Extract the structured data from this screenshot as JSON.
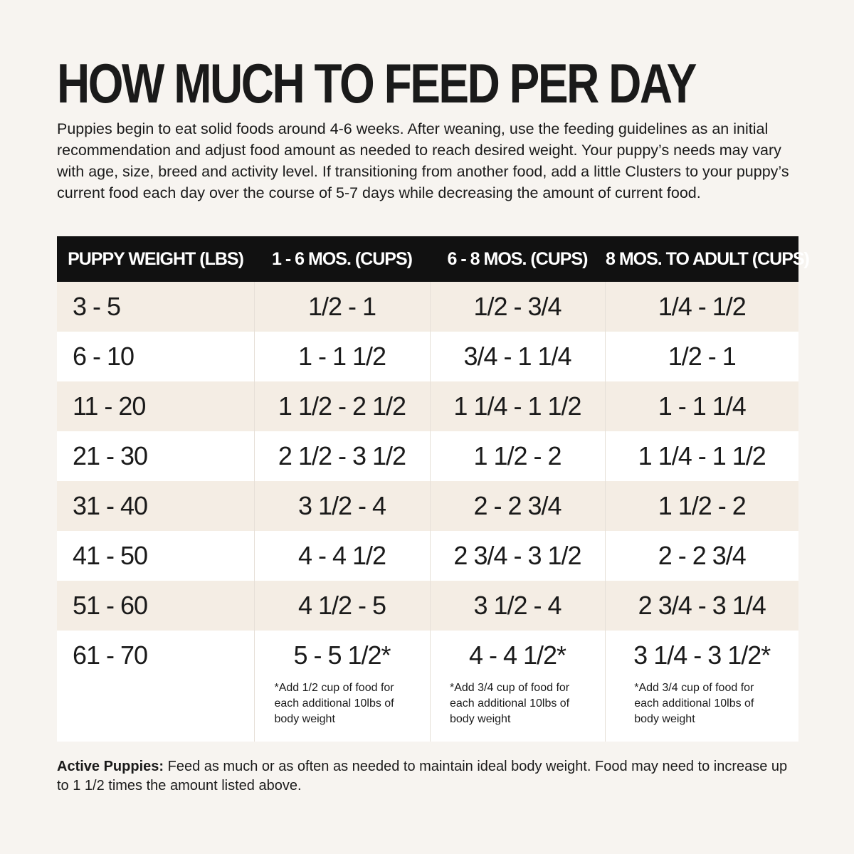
{
  "header": {
    "title": "HOW MUCH TO FEED PER DAY",
    "intro": "Puppies begin to eat solid foods around 4-6 weeks. After weaning, use the feeding guidelines as an initial recommendation and adjust food amount as needed to reach desired weight. Your puppy’s needs may vary with age, size, breed and activity level. If transitioning from another food, add a little Clusters to your puppy’s current food each day over the course of 5-7 days while decreasing the amount of current food."
  },
  "table": {
    "columns": [
      "PUPPY WEIGHT (LBS)",
      "1 - 6 MOS. (CUPS)",
      "6 - 8 MOS. (CUPS)",
      "8 MOS. TO ADULT (CUPS)"
    ],
    "rows": [
      [
        "3 - 5",
        "1/2 - 1",
        "1/2 - 3/4",
        "1/4 - 1/2"
      ],
      [
        "6 - 10",
        "1 - 1 1/2",
        "3/4 - 1 1/4",
        "1/2 - 1"
      ],
      [
        "11 - 20",
        "1 1/2 - 2 1/2",
        "1 1/4 - 1 1/2",
        "1 - 1 1/4"
      ],
      [
        "21 - 30",
        "2 1/2 - 3 1/2",
        "1 1/2 - 2",
        "1 1/4 - 1 1/2"
      ],
      [
        "31 - 40",
        "3 1/2 - 4",
        "2 - 2 3/4",
        "1 1/2 - 2"
      ],
      [
        "41 - 50",
        "4 - 4 1/2",
        "2 3/4 - 3 1/2",
        "2 - 2 3/4"
      ],
      [
        "51 - 60",
        "4 1/2 - 5",
        "3 1/2 - 4",
        "2 3/4 - 3 1/4"
      ],
      [
        "61 - 70",
        "5 - 5 1/2*",
        "4 - 4 1/2*",
        "3 1/4 - 3 1/2*"
      ]
    ],
    "footnotes": [
      "*Add 1/2 cup of food for each additional 10lbs of body weight",
      "*Add 3/4 cup of food for each additional 10lbs of body weight",
      "*Add 3/4 cup of food for each additional 10lbs of body weight"
    ]
  },
  "footer": {
    "label": "Active Puppies:",
    "text": "Feed as much or as often as needed to maintain ideal body weight. Food may need to increase up to 1 1/2 times the amount listed above."
  }
}
